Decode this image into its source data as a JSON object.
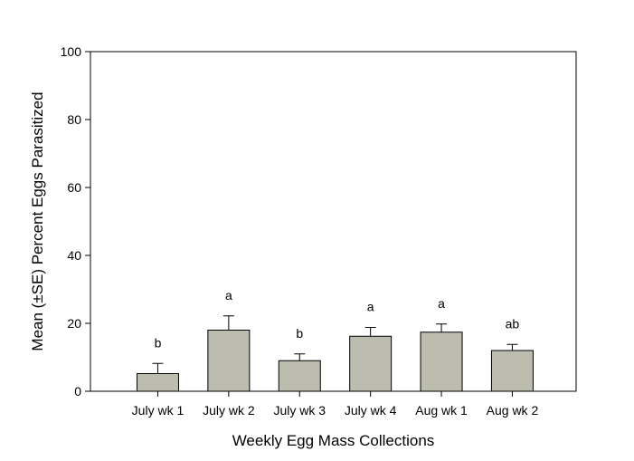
{
  "chart_data": {
    "type": "bar",
    "title": "",
    "xlabel": "Weekly Egg Mass Collections",
    "ylabel": "Mean (±SE) Percent Eggs Parasitized",
    "categories": [
      "July wk 1",
      "July wk 2",
      "July wk 3",
      "July wk 4",
      "Aug wk 1",
      "Aug wk 2"
    ],
    "values": [
      5.2,
      18.0,
      9.0,
      16.2,
      17.4,
      12.0
    ],
    "errors": [
      3.0,
      4.2,
      2.0,
      2.6,
      2.4,
      1.8
    ],
    "significance_labels": [
      "b",
      "a",
      "b",
      "a",
      "a",
      "ab"
    ],
    "ylim": [
      0,
      100
    ],
    "yticks": [
      0,
      20,
      40,
      60,
      80,
      100
    ],
    "grid": false,
    "bar_color": "#bcbcaf",
    "bar_edge_color": "#000000"
  }
}
